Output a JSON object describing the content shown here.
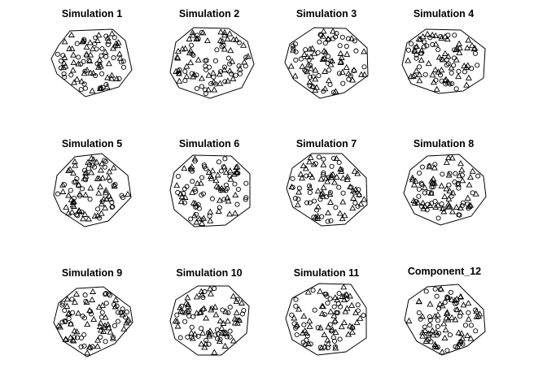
{
  "figure": {
    "background": "#ffffff",
    "ink": "#000000"
  },
  "chart_data": [
    {
      "type": "scatter",
      "title": "Simulation 1",
      "marks": [
        "circle",
        "triangle"
      ]
    },
    {
      "type": "scatter",
      "title": "Simulation 2",
      "marks": [
        "circle",
        "triangle"
      ]
    },
    {
      "type": "scatter",
      "title": "Simulation 3",
      "marks": [
        "circle",
        "triangle"
      ]
    },
    {
      "type": "scatter",
      "title": "Simulation 4",
      "marks": [
        "circle",
        "triangle"
      ]
    },
    {
      "type": "scatter",
      "title": "Simulation 5",
      "marks": [
        "circle",
        "triangle"
      ]
    },
    {
      "type": "scatter",
      "title": "Simulation 6",
      "marks": [
        "circle",
        "triangle"
      ]
    },
    {
      "type": "scatter",
      "title": "Simulation 7",
      "marks": [
        "circle",
        "triangle"
      ]
    },
    {
      "type": "scatter",
      "title": "Simulation 8",
      "marks": [
        "circle",
        "triangle"
      ]
    },
    {
      "type": "scatter",
      "title": "Simulation 9",
      "marks": [
        "circle",
        "triangle"
      ]
    },
    {
      "type": "scatter",
      "title": "Simulation 10",
      "marks": [
        "circle",
        "triangle"
      ]
    },
    {
      "type": "scatter",
      "title": "Simulation 11",
      "marks": [
        "circle",
        "triangle"
      ]
    },
    {
      "type": "scatter",
      "title": "Component_12",
      "marks": [
        "circle",
        "triangle"
      ]
    }
  ]
}
